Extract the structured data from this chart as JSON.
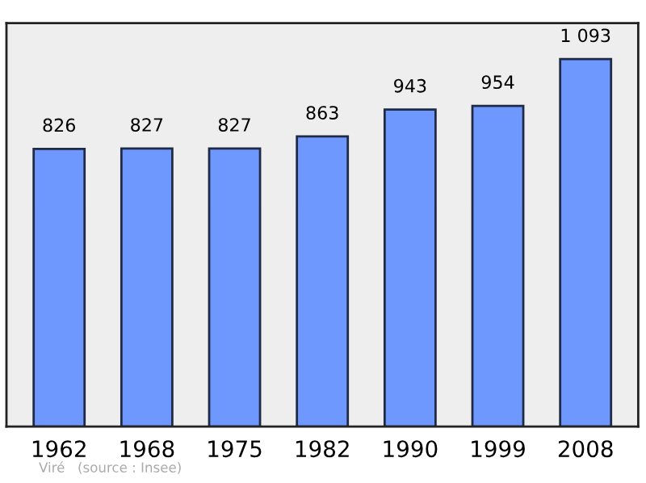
{
  "chart_data": {
    "type": "bar",
    "categories": [
      "1962",
      "1968",
      "1975",
      "1982",
      "1990",
      "1999",
      "2008"
    ],
    "values": [
      826,
      827,
      827,
      863,
      943,
      954,
      1093
    ],
    "value_labels": [
      "826",
      "827",
      "827",
      "863",
      "943",
      "954",
      "1 093"
    ],
    "color": "#6f98ff",
    "ylim": [
      0,
      1200
    ],
    "tick_labels": "x",
    "grid": false,
    "legend": false,
    "annotations": [
      "Viré",
      "(source : Insee)"
    ]
  }
}
